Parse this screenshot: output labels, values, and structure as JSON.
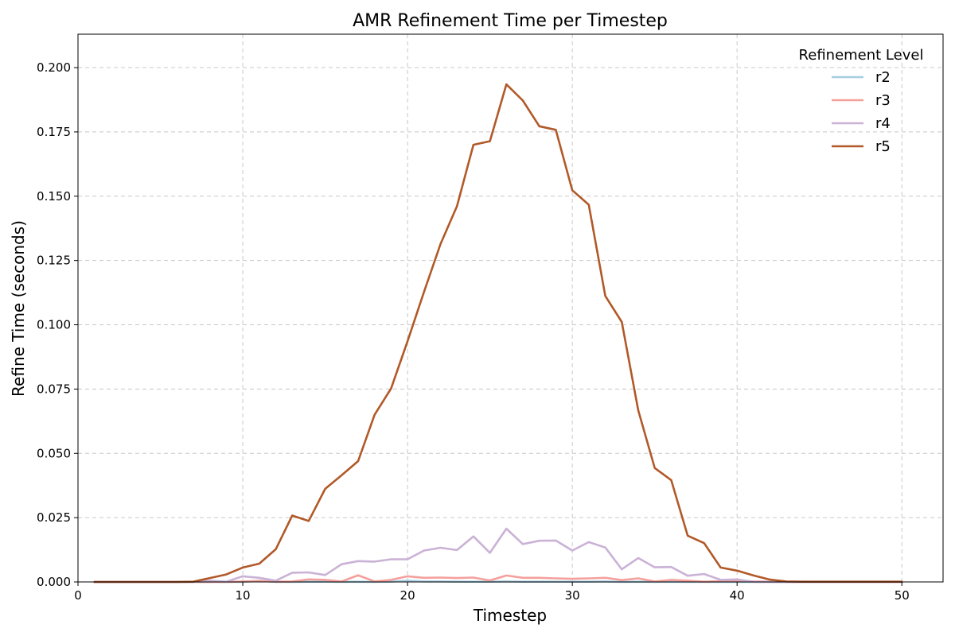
{
  "chart_data": {
    "type": "line",
    "title": "AMR Refinement Time per Timestep",
    "xlabel": "Timestep",
    "ylabel": "Refine Time (seconds)",
    "xlim": [
      0,
      52.5
    ],
    "ylim": [
      0,
      0.213
    ],
    "xticks": [
      0,
      10,
      20,
      30,
      40,
      50
    ],
    "xtick_labels": [
      "0",
      "10",
      "20",
      "30",
      "40",
      "50"
    ],
    "yticks": [
      0,
      0.025,
      0.05,
      0.075,
      0.1,
      0.125,
      0.15,
      0.175,
      0.2
    ],
    "ytick_labels": [
      "0.000",
      "0.025",
      "0.050",
      "0.075",
      "0.100",
      "0.125",
      "0.150",
      "0.175",
      "0.200"
    ],
    "grid": true,
    "legend": {
      "title": "Refinement Level",
      "placement": "top-right"
    },
    "x": [
      1,
      2,
      3,
      4,
      5,
      6,
      7,
      8,
      9,
      10,
      11,
      12,
      13,
      14,
      15,
      16,
      17,
      18,
      19,
      20,
      21,
      22,
      23,
      24,
      25,
      26,
      27,
      28,
      29,
      30,
      31,
      32,
      33,
      34,
      35,
      36,
      37,
      38,
      39,
      40,
      41,
      42,
      43,
      44,
      45,
      46,
      47,
      48,
      49,
      50
    ],
    "series": [
      {
        "name": "r2",
        "color": "#a6cee3",
        "values": [
          0,
          0,
          0,
          0,
          0,
          0,
          0,
          0,
          0,
          0,
          0.0005,
          0,
          0,
          0.0001,
          0.0001,
          0,
          0.0001,
          0,
          0.0001,
          0.0005,
          0.0002,
          0.0002,
          0.0001,
          0.0001,
          0.0001,
          0.0002,
          0.0001,
          0.0001,
          0.0001,
          0.0001,
          0.0001,
          0.0002,
          0,
          0.0001,
          0,
          0.0001,
          0,
          0,
          0,
          0,
          0,
          0,
          0,
          0,
          0,
          0,
          0,
          0,
          0,
          0
        ]
      },
      {
        "name": "r3",
        "color": "#f4a09c",
        "values": [
          0,
          0,
          0,
          0,
          0,
          0,
          0,
          0,
          0,
          0.0002,
          0.0004,
          0.0001,
          0.0002,
          0.001,
          0.0008,
          0.0002,
          0.0026,
          0.0002,
          0.0008,
          0.0022,
          0.0016,
          0.0017,
          0.0015,
          0.0017,
          0.0006,
          0.0025,
          0.0016,
          0.0016,
          0.0014,
          0.0012,
          0.0014,
          0.0016,
          0.0007,
          0.0014,
          0.0002,
          0.0008,
          0.0005,
          0.0001,
          0.0003,
          0.0006,
          0.0002,
          0.0001,
          0,
          0,
          0,
          0,
          0,
          0,
          0,
          0
        ]
      },
      {
        "name": "r4",
        "color": "#cab2d6",
        "values": [
          0,
          0,
          0,
          0,
          0,
          0,
          0,
          0.0005,
          0.0001,
          0.0022,
          0.0016,
          0.0005,
          0.0036,
          0.0037,
          0.0027,
          0.0069,
          0.0081,
          0.0079,
          0.0088,
          0.0088,
          0.0122,
          0.0133,
          0.0124,
          0.0177,
          0.0113,
          0.0207,
          0.0147,
          0.016,
          0.0161,
          0.0122,
          0.0155,
          0.0134,
          0.0049,
          0.0093,
          0.0057,
          0.0058,
          0.0024,
          0.0031,
          0.0008,
          0.001,
          0,
          0,
          0,
          0,
          0,
          0,
          0,
          0,
          0,
          0
        ]
      },
      {
        "name": "r5",
        "color": "#b15928",
        "values": [
          0,
          0,
          0,
          0,
          0,
          0,
          0.0001,
          0.0015,
          0.0029,
          0.0056,
          0.0071,
          0.0127,
          0.0258,
          0.0237,
          0.0362,
          0.0415,
          0.047,
          0.065,
          0.0752,
          0.0936,
          0.1128,
          0.1314,
          0.1461,
          0.17,
          0.1714,
          0.1935,
          0.1872,
          0.1772,
          0.1758,
          0.1523,
          0.1467,
          0.1112,
          0.1011,
          0.0667,
          0.0443,
          0.0396,
          0.018,
          0.0151,
          0.0056,
          0.0044,
          0.0025,
          0.0009,
          0.0002,
          0.0001,
          0.0001,
          0.0001,
          0.0001,
          0.0001,
          0.0001,
          0.0001
        ]
      }
    ]
  }
}
